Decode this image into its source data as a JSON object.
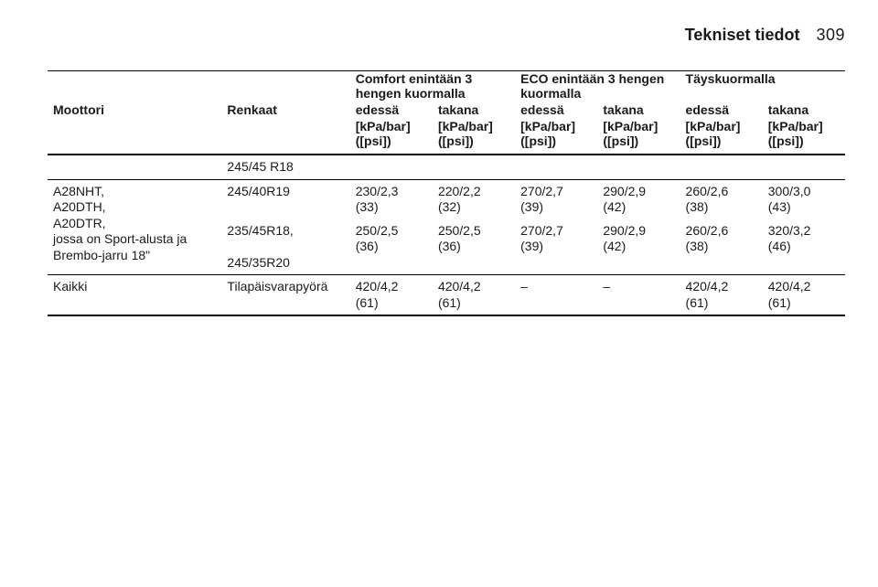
{
  "header": {
    "section_title": "Tekniset tiedot",
    "page_number": "309"
  },
  "columns": {
    "engine": "Moottori",
    "tyres": "Renkaat",
    "group_comfort": "Comfort enintään 3 hengen kuormalla",
    "group_eco": "ECO enintään 3 hengen kuormalla",
    "group_full": "Täyskuormalla",
    "front": "edessä",
    "rear": "takana",
    "unit_top": "[kPa/bar]",
    "unit_bottom": "([psi])"
  },
  "rows": {
    "pre_tyre": "245/45 R18",
    "block1": {
      "engines_l1": "A28NHT,",
      "engines_l2": "A20DTH,",
      "engines_l3": "A20DTR,",
      "engines_l4": "jossa on Sport-alusta ja",
      "engines_l5": "Brembo-jarru 18\"",
      "tyre1": "245/40R19",
      "tyre2a": "235/45R18,",
      "tyre2b": "245/35R20",
      "r1": {
        "cf_t": "230/2,3",
        "cf_b": "(33)",
        "cr_t": "220/2,2",
        "cr_b": "(32)",
        "ef_t": "270/2,7",
        "ef_b": "(39)",
        "er_t": "290/2,9",
        "er_b": "(42)",
        "ff_t": "260/2,6",
        "ff_b": "(38)",
        "fr_t": "300/3,0",
        "fr_b": "(43)"
      },
      "r2": {
        "cf_t": "250/2,5",
        "cf_b": "(36)",
        "cr_t": "250/2,5",
        "cr_b": "(36)",
        "ef_t": "270/2,7",
        "ef_b": "(39)",
        "er_t": "290/2,9",
        "er_b": "(42)",
        "ff_t": "260/2,6",
        "ff_b": "(38)",
        "fr_t": "320/3,2",
        "fr_b": "(46)"
      }
    },
    "block2": {
      "engine": "Kaikki",
      "tyre": "Tilapäisvarapyörä",
      "cf_t": "420/4,2",
      "cf_b": "(61)",
      "cr_t": "420/4,2",
      "cr_b": "(61)",
      "ef": "–",
      "er": "–",
      "ff_t": "420/4,2",
      "ff_b": "(61)",
      "fr_t": "420/4,2",
      "fr_b": "(61)"
    }
  }
}
